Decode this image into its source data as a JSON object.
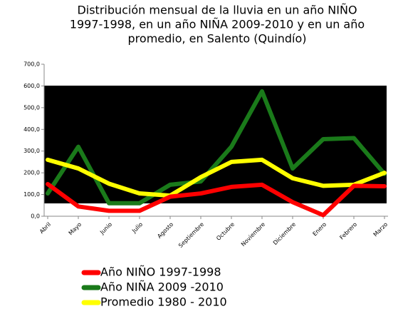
{
  "chart_data": {
    "type": "line",
    "title": [
      "Distribución mensual de la lluvia en un año NIÑO",
      "1997-1998, en un año NIÑA 2009-2010 y en un año",
      "promedio, en Salento (Quindío)"
    ],
    "categories": [
      "Abril",
      "Mayo",
      "Junio",
      "Julio",
      "Agosto",
      "Septiembre",
      "Octubre",
      "Noviembre",
      "Diciembre",
      "Enero",
      "Febrero",
      "Marzo"
    ],
    "series": [
      {
        "name": "Año NIÑO 1997-1998",
        "color": "#ff0000",
        "values": [
          148,
          45,
          25,
          25,
          90,
          105,
          135,
          145,
          65,
          5,
          140,
          138
        ]
      },
      {
        "name": "Año NIÑA 2009 -2010",
        "color": "#1a7a1a",
        "values": [
          105,
          320,
          60,
          60,
          145,
          160,
          320,
          575,
          220,
          355,
          360,
          195
        ]
      },
      {
        "name": "Promedio 1980 - 2010",
        "color": "#ffff00",
        "values": [
          260,
          220,
          150,
          105,
          95,
          180,
          250,
          260,
          175,
          140,
          145,
          200
        ]
      }
    ],
    "ylim": [
      0,
      700
    ],
    "yticks": [
      {
        "value": 0,
        "label": "0,0"
      },
      {
        "value": 100,
        "label": "100,0"
      },
      {
        "value": 200,
        "label": "200,0"
      },
      {
        "value": 300,
        "label": "300,0"
      },
      {
        "value": 400,
        "label": "400,0"
      },
      {
        "value": 500,
        "label": "500,0"
      },
      {
        "value": 600,
        "label": "600,0"
      },
      {
        "value": 700,
        "label": "700,0"
      }
    ]
  }
}
